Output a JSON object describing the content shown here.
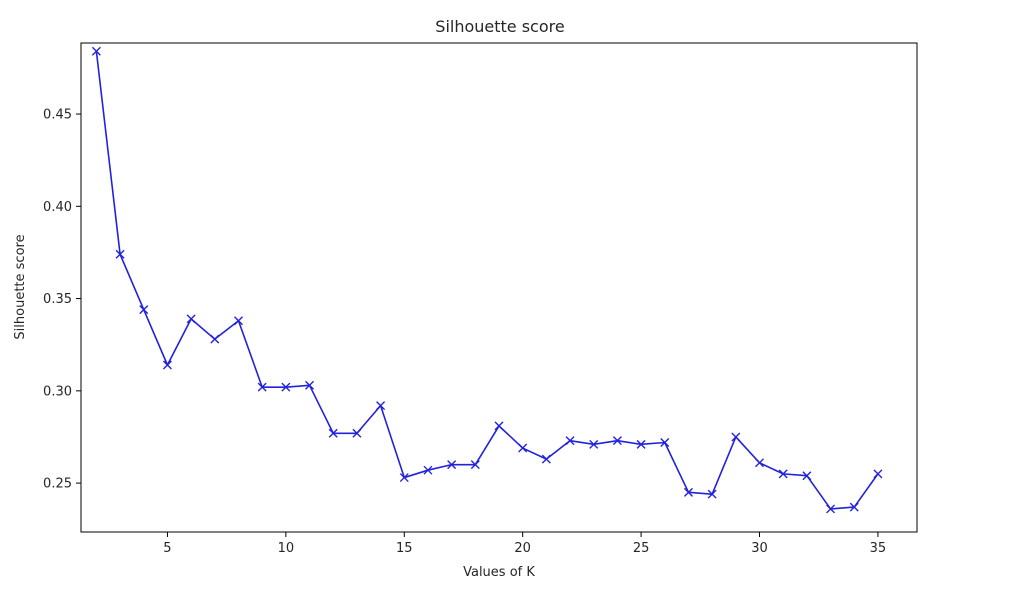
{
  "chart_data": {
    "type": "line",
    "title": "Silhouette score",
    "xlabel": "Values of K",
    "ylabel": "Silhouette score",
    "xlim": [
      1.35,
      36.65
    ],
    "ylim": [
      0.2235,
      0.4885
    ],
    "xticks": [
      5,
      10,
      15,
      20,
      25,
      30,
      35
    ],
    "yticks": [
      0.25,
      0.3,
      0.35,
      0.4,
      0.45
    ],
    "yticklabels": [
      "0.25",
      "0.30",
      "0.35",
      "0.40",
      "0.45"
    ],
    "grid": false,
    "marker": "x",
    "line_color": "#2222dd",
    "series": [
      {
        "x": [
          2,
          3,
          4,
          5,
          6,
          7,
          8,
          9,
          10,
          11,
          12,
          13,
          14,
          15,
          16,
          17,
          18,
          19,
          20,
          21,
          22,
          23,
          24,
          25,
          26,
          27,
          28,
          29,
          30,
          31,
          32,
          33,
          34,
          35
        ],
        "values": [
          0.484,
          0.374,
          0.344,
          0.314,
          0.339,
          0.328,
          0.338,
          0.302,
          0.302,
          0.303,
          0.277,
          0.277,
          0.292,
          0.253,
          0.257,
          0.26,
          0.26,
          0.281,
          0.269,
          0.263,
          0.273,
          0.271,
          0.273,
          0.271,
          0.272,
          0.245,
          0.244,
          0.275,
          0.261,
          0.255,
          0.254,
          0.236,
          0.237,
          0.255
        ]
      }
    ]
  }
}
